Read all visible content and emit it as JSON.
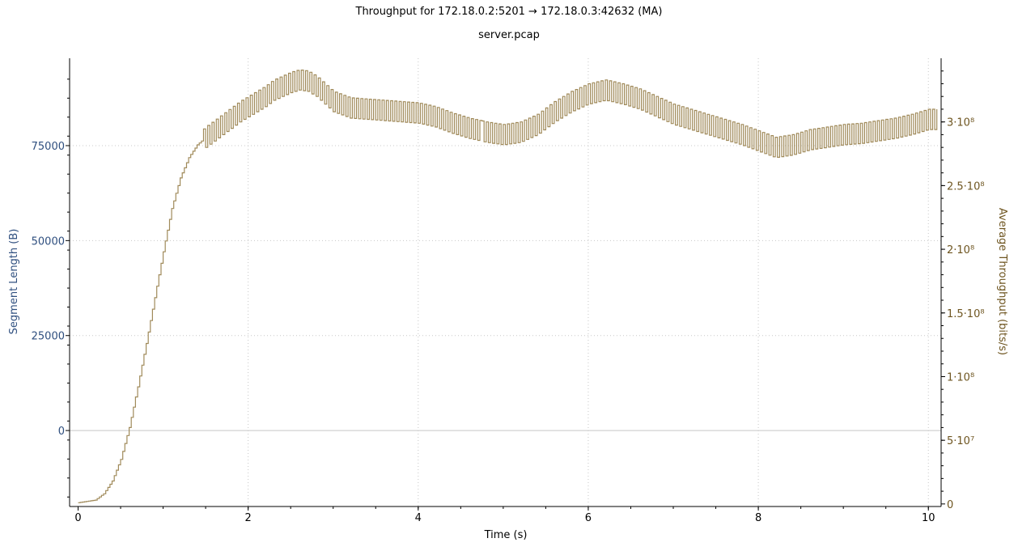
{
  "chart_data": {
    "type": "line",
    "title": "Throughput for 172.18.0.2:5201 → 172.18.0.3:42632 (MA)",
    "subtitle": "server.pcap",
    "xlabel": "Time (s)",
    "ylabel_left": "Segment Length (B)",
    "ylabel_right": "Average Throughput (bits/s)",
    "xlim": [
      -0.1,
      10.15
    ],
    "ylim_left": [
      -20000,
      98000
    ],
    "ylim_right": [
      -2000000,
      350000000
    ],
    "x_ticks": [
      "0",
      "2",
      "4",
      "6",
      "8",
      "10"
    ],
    "x_tick_values": [
      0,
      2,
      4,
      6,
      8,
      10
    ],
    "y_left_ticks": [
      "0",
      "25000",
      "50000",
      "75000"
    ],
    "y_left_tick_values": [
      0,
      25000,
      50000,
      75000
    ],
    "y_right_ticks": [
      "0",
      "5·10⁷",
      "1·10⁸",
      "1.5·10⁸",
      "2·10⁸",
      "2.5·10⁸",
      "3·10⁸"
    ],
    "y_right_tick_values": [
      0,
      50000000,
      100000000,
      150000000,
      200000000,
      250000000,
      300000000
    ],
    "grid": true,
    "series": [
      {
        "axis": "right",
        "color": "#a08a5a",
        "x": [
          0.0,
          0.2,
          0.3,
          0.4,
          0.5,
          0.6,
          0.7,
          0.8,
          0.9,
          1.0,
          1.1,
          1.2,
          1.3,
          1.4,
          1.5,
          1.6,
          1.7,
          1.8,
          1.9,
          2.0,
          2.1,
          2.2,
          2.3,
          2.4,
          2.5,
          2.6,
          2.7,
          2.8,
          2.9,
          3.0,
          3.2,
          3.4,
          3.6,
          3.8,
          4.0,
          4.2,
          4.4,
          4.6,
          4.8,
          5.0,
          5.2,
          5.4,
          5.6,
          5.8,
          6.0,
          6.2,
          6.4,
          6.6,
          6.8,
          7.0,
          7.2,
          7.4,
          7.6,
          7.8,
          8.0,
          8.2,
          8.4,
          8.6,
          8.8,
          9.0,
          9.2,
          9.4,
          9.6,
          9.8,
          10.0,
          10.1
        ],
        "y": [
          1000000,
          3000000,
          8000000,
          18000000,
          35000000,
          60000000,
          92000000,
          126000000,
          162000000,
          198000000,
          232000000,
          256000000,
          272000000,
          282000000,
          288000000,
          293000000,
          298000000,
          303000000,
          308000000,
          312000000,
          316000000,
          320000000,
          325000000,
          328000000,
          331000000,
          333000000,
          332000000,
          328000000,
          322000000,
          316000000,
          311000000,
          310000000,
          309000000,
          308000000,
          307000000,
          304000000,
          299000000,
          295000000,
          292000000,
          290000000,
          292000000,
          298000000,
          308000000,
          316000000,
          322000000,
          325000000,
          322000000,
          318000000,
          312000000,
          306000000,
          302000000,
          298000000,
          294000000,
          290000000,
          285000000,
          280000000,
          282000000,
          286000000,
          288000000,
          290000000,
          291000000,
          293000000,
          295000000,
          298000000,
          302000000,
          302000000
        ],
        "oscillation_amplitude": 8000000
      }
    ]
  }
}
